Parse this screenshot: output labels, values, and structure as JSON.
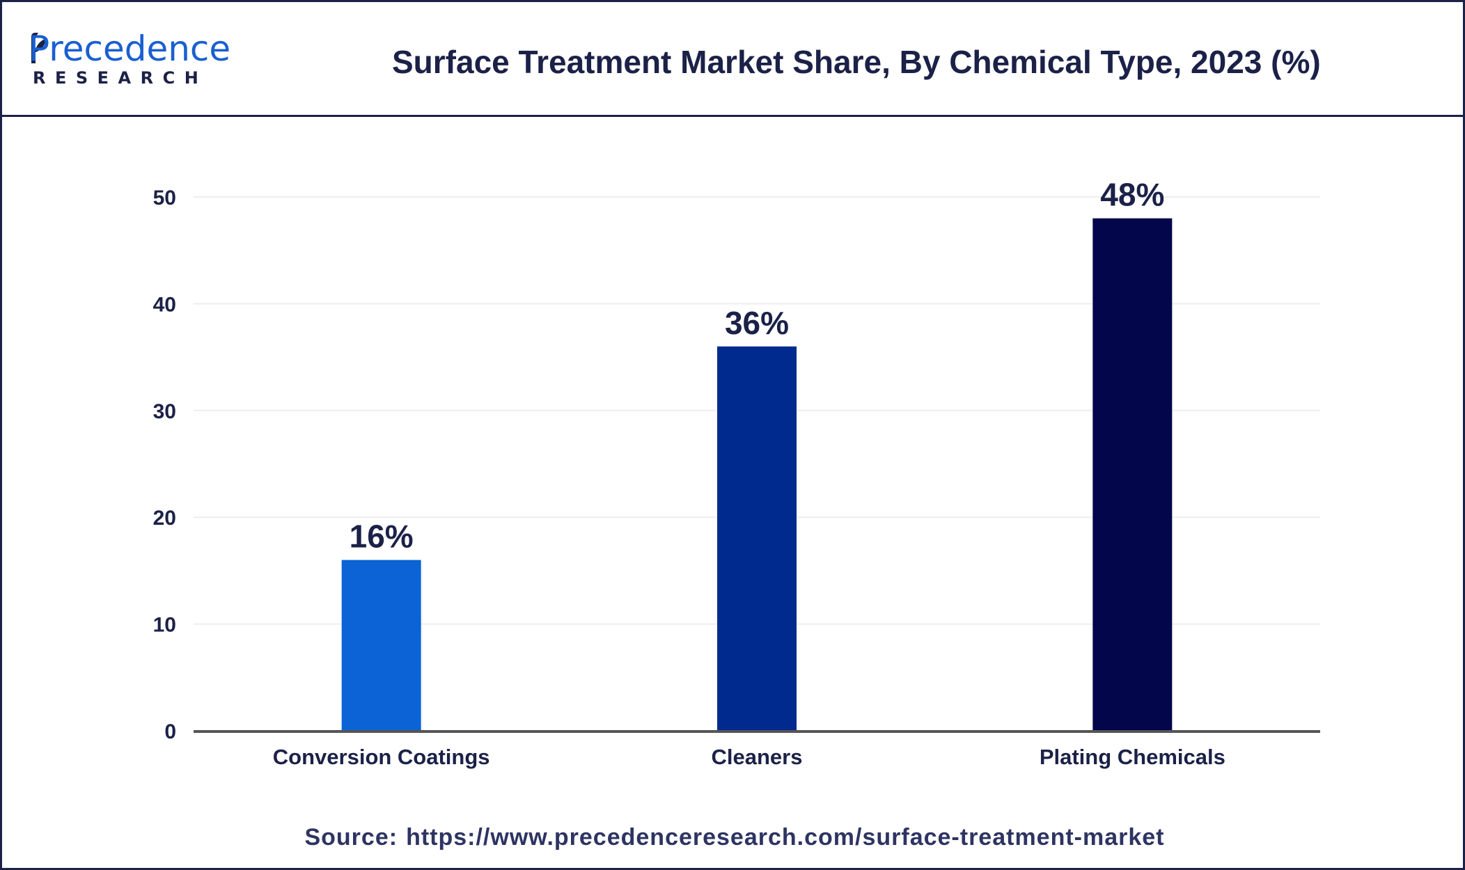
{
  "logo": {
    "brand": "Precedence",
    "sub": "RESEARCH"
  },
  "colors": {
    "border": "#1b2147",
    "text": "#1b2147",
    "grid": "#eeeeee",
    "axis": "#555555"
  },
  "source": {
    "label": "Source:",
    "url": "https://www.precedenceresearch.com/surface-treatment-market"
  },
  "chart_data": {
    "type": "bar",
    "title": "Surface Treatment Market Share, By Chemical Type, 2023 (%)",
    "xlabel": "",
    "ylabel": "",
    "categories": [
      "Conversion Coatings",
      "Cleaners",
      "Plating Chemicals"
    ],
    "values": [
      16,
      36,
      48
    ],
    "data_labels": [
      "16%",
      "36%",
      "48%"
    ],
    "bar_colors": [
      "#0b63d6",
      "#012a8f",
      "#03064a"
    ],
    "ylim": [
      0,
      50
    ],
    "yticks": [
      0,
      10,
      20,
      30,
      40,
      50
    ],
    "grid": true,
    "legend": "none"
  }
}
